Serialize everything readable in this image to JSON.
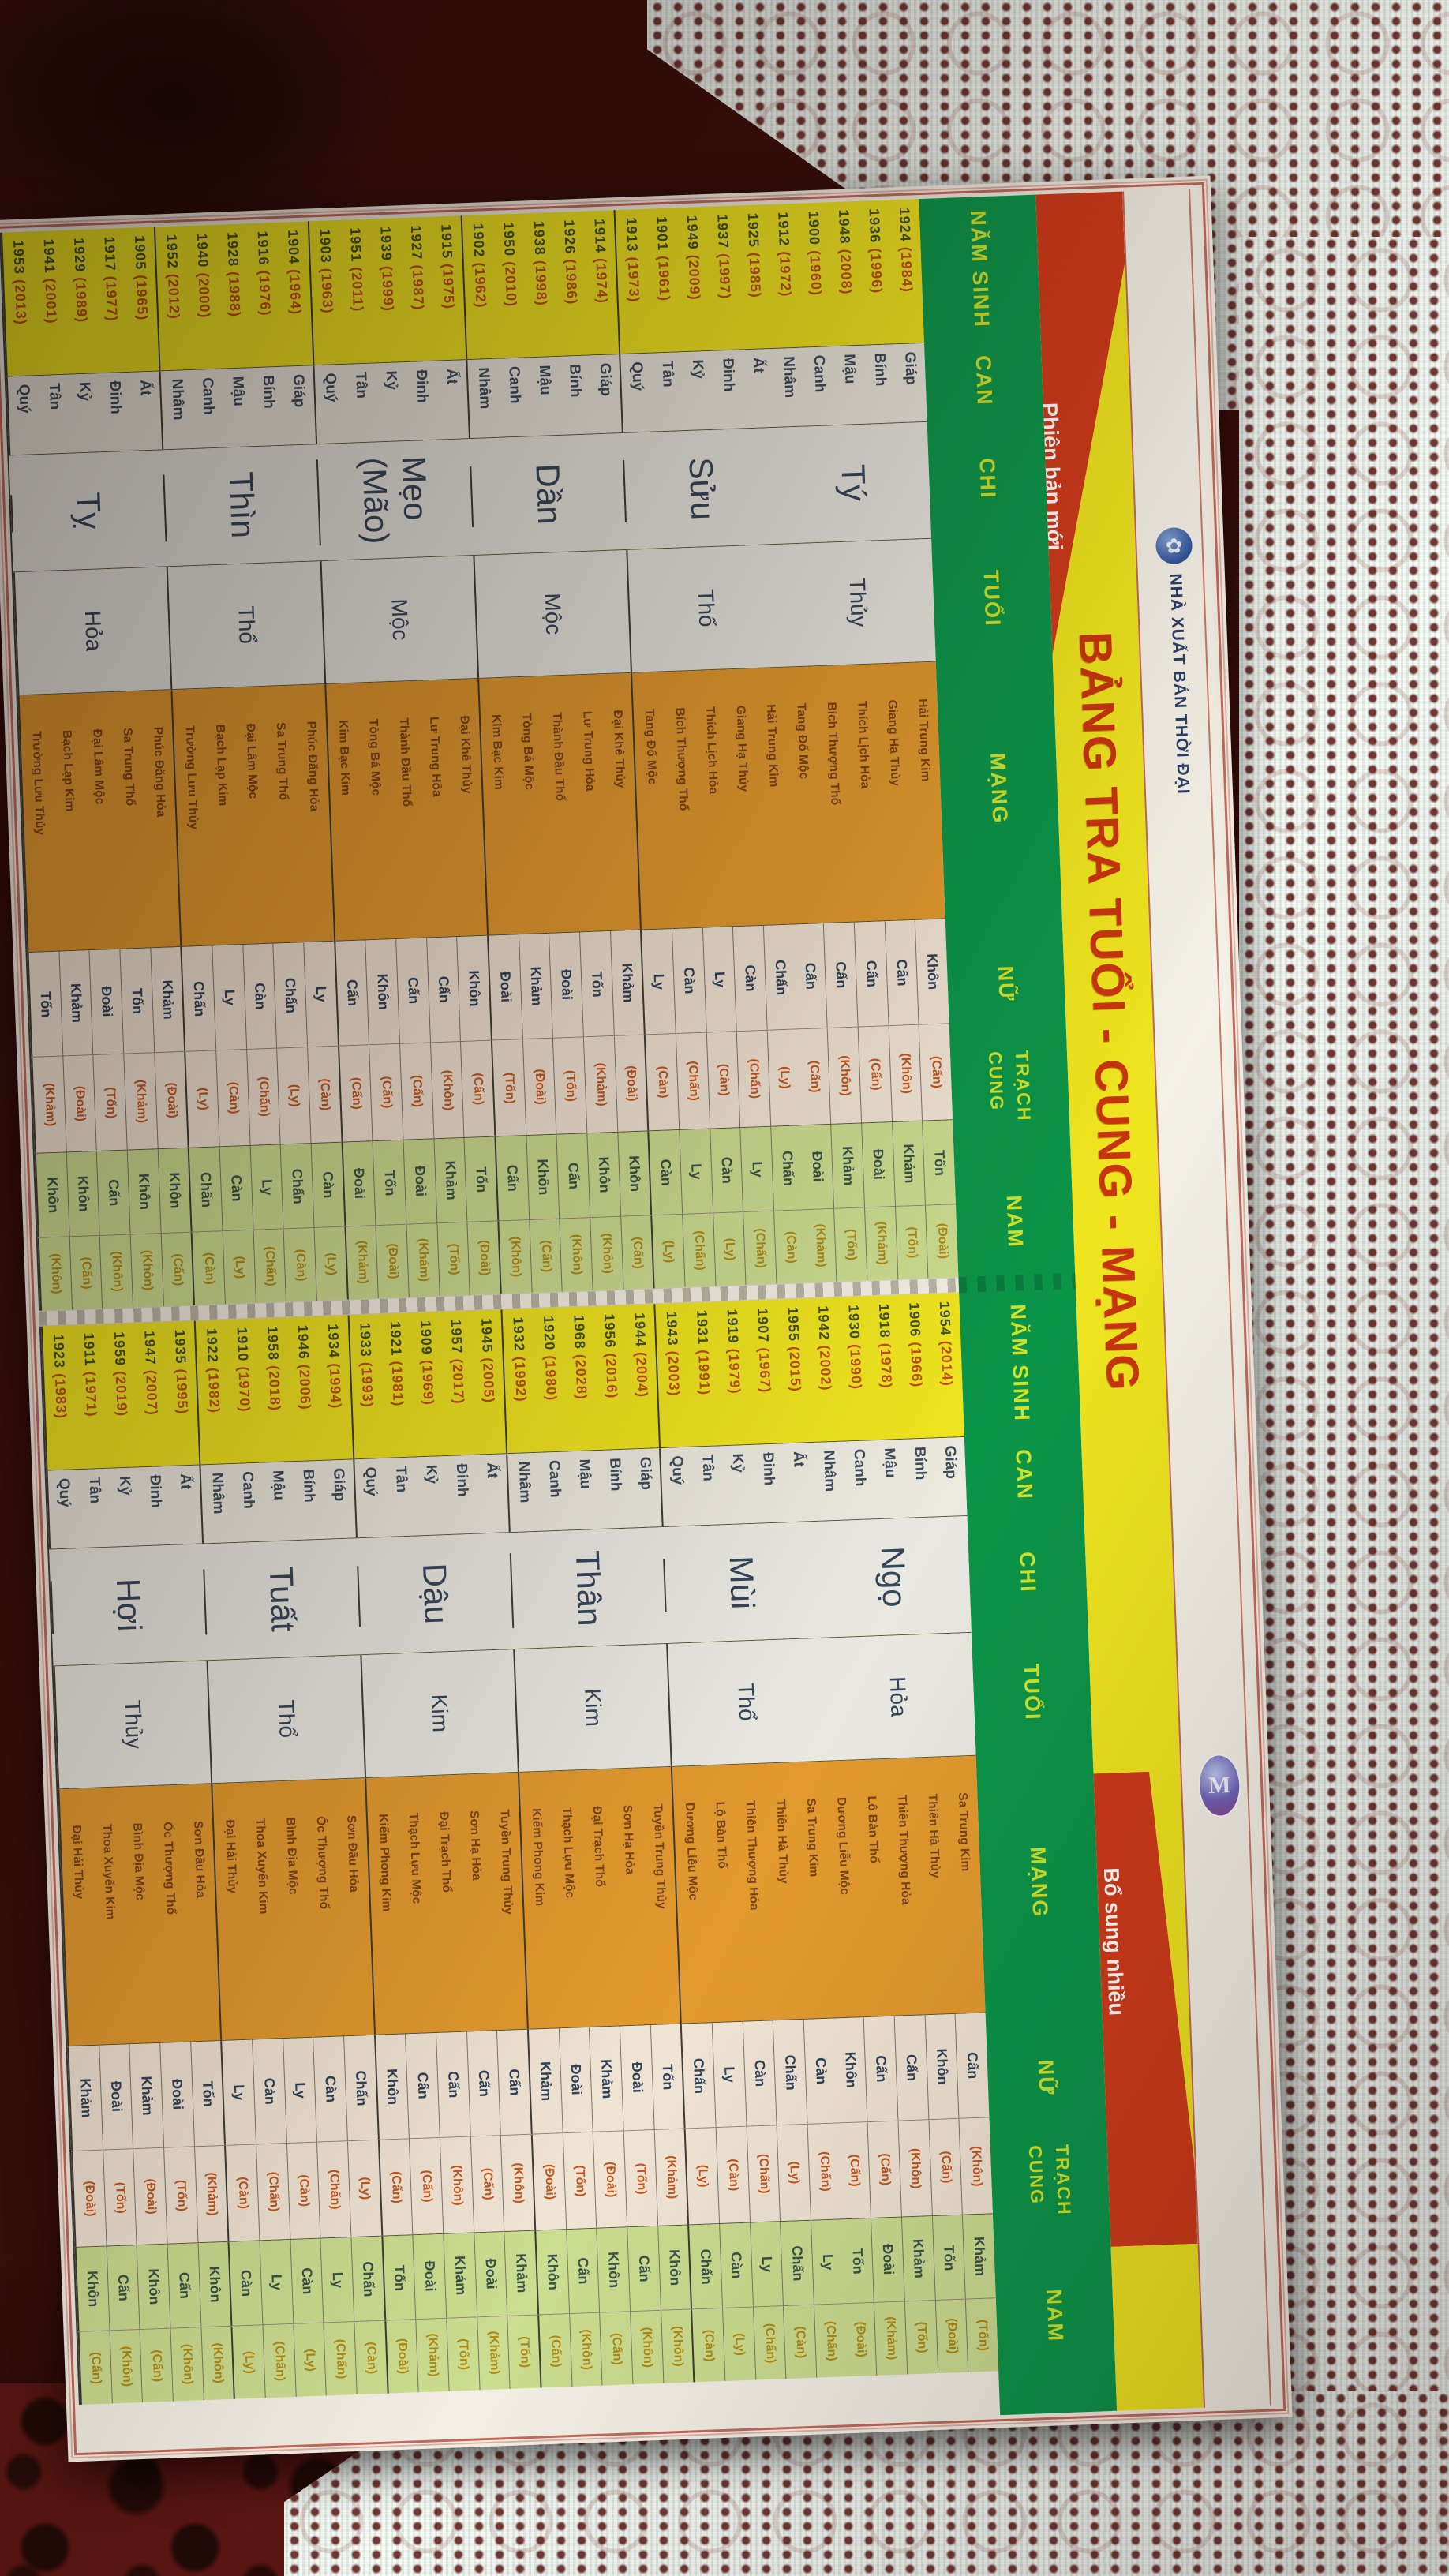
{
  "banner": {
    "ribbon_top": "Phiên bản mới",
    "publisher": "NHÀ XUẤT BẢN THỜI ĐẠI",
    "publisher_logo_glyph": "✿",
    "title": "BẢNG TRA TUỔI - CUNG - MẠNG",
    "ribbon_bottom": "Bổ sung nhiều",
    "m_badge": "M"
  },
  "headers": {
    "nam_sinh": "NĂM SINH",
    "can": "CAN",
    "chi": "CHI",
    "tuoi": "TUỔI",
    "mang": "MẠNG",
    "trach_cung": "TRẠCH CUNG",
    "nu": "NỮ",
    "nam": "NAM"
  },
  "colors": {
    "cloth": "#3a0e0a",
    "yellow": "#efe51f",
    "green": "#0b9549",
    "orange": "#e29a2e",
    "red": "#ce3a1a",
    "redtxt": "#bf4f1a"
  },
  "tables": [
    {
      "id": "front",
      "groups": [
        {
          "chi": "Tý",
          "chi_alt": "",
          "tuoi": "Thủy",
          "rows": [
            {
              "year": "1924",
              "alt": "(1984)",
              "can": "Giáp",
              "mang": "Hải Trung Kim",
              "nu": "Khôn",
              "nu_alt": "(Cấn)",
              "nam": "Tốn",
              "nam_alt": "(Đoài)"
            },
            {
              "year": "1936",
              "alt": "(1996)",
              "can": "Bính",
              "mang": "Giang Hạ Thủy",
              "nu": "Cấn",
              "nu_alt": "(Khôn)",
              "nam": "Khảm",
              "nam_alt": "(Tốn)"
            },
            {
              "year": "1948",
              "alt": "(2008)",
              "can": "Mậu",
              "mang": "Thích Lịch Hỏa",
              "nu": "Cấn",
              "nu_alt": "(Cấn)",
              "nam": "Đoài",
              "nam_alt": "(Khảm)"
            },
            {
              "year": "1900",
              "alt": "(1960)",
              "can": "Canh",
              "mang": "Bích Thượng Thổ",
              "nu": "Cấn",
              "nu_alt": "(Khôn)",
              "nam": "Khảm",
              "nam_alt": "(Tốn)"
            },
            {
              "year": "1912",
              "alt": "(1972)",
              "can": "Nhâm",
              "mang": "Tang Đố Mộc",
              "nu": "Cấn",
              "nu_alt": "(Cấn)",
              "nam": "Đoài",
              "nam_alt": "(Khảm)"
            }
          ]
        },
        {
          "chi": "Sửu",
          "chi_alt": "",
          "tuoi": "Thổ",
          "rows": [
            {
              "year": "1925",
              "alt": "(1985)",
              "can": "Ất",
              "mang": "Hải Trung Kim",
              "nu": "Chấn",
              "nu_alt": "(Ly)",
              "nam": "Chấn",
              "nam_alt": "(Càn)"
            },
            {
              "year": "1937",
              "alt": "(1997)",
              "can": "Đinh",
              "mang": "Giang Hạ Thủy",
              "nu": "Càn",
              "nu_alt": "(Chấn)",
              "nam": "Ly",
              "nam_alt": "(Chấn)"
            },
            {
              "year": "1949",
              "alt": "(2009)",
              "can": "Kỷ",
              "mang": "Thích Lịch Hỏa",
              "nu": "Ly",
              "nu_alt": "(Càn)",
              "nam": "Càn",
              "nam_alt": "(Ly)"
            },
            {
              "year": "1901",
              "alt": "(1961)",
              "can": "Tân",
              "mang": "Bích Thượng Thổ",
              "nu": "Càn",
              "nu_alt": "(Chấn)",
              "nam": "Ly",
              "nam_alt": "(Chấn)"
            },
            {
              "year": "1913",
              "alt": "(1973)",
              "can": "Quý",
              "mang": "Tang Đố Mộc",
              "nu": "Ly",
              "nu_alt": "(Càn)",
              "nam": "Càn",
              "nam_alt": "(Ly)"
            }
          ]
        },
        {
          "chi": "Dần",
          "chi_alt": "",
          "tuoi": "Mộc",
          "rows": [
            {
              "year": "1914",
              "alt": "(1974)",
              "can": "Giáp",
              "mang": "Đại Khê Thủy",
              "nu": "Khảm",
              "nu_alt": "(Đoài)",
              "nam": "Khôn",
              "nam_alt": "(Cấn)"
            },
            {
              "year": "1926",
              "alt": "(1986)",
              "can": "Bính",
              "mang": "Lư Trung Hỏa",
              "nu": "Tốn",
              "nu_alt": "(Khảm)",
              "nam": "Khôn",
              "nam_alt": "(Khôn)"
            },
            {
              "year": "1938",
              "alt": "(1998)",
              "can": "Mậu",
              "mang": "Thành Đầu Thổ",
              "nu": "Đoài",
              "nu_alt": "(Tốn)",
              "nam": "Cấn",
              "nam_alt": "(Khôn)"
            },
            {
              "year": "1950",
              "alt": "(2010)",
              "can": "Canh",
              "mang": "Tòng Bá Mộc",
              "nu": "Khảm",
              "nu_alt": "(Đoài)",
              "nam": "Khôn",
              "nam_alt": "(Cấn)"
            },
            {
              "year": "1902",
              "alt": "(1962)",
              "can": "Nhâm",
              "mang": "Kim Bạc Kim",
              "nu": "Đoài",
              "nu_alt": "(Tốn)",
              "nam": "Cấn",
              "nam_alt": "(Khôn)"
            }
          ]
        },
        {
          "chi": "Mẹo",
          "chi_alt": "(Mão)",
          "tuoi": "Mộc",
          "rows": [
            {
              "year": "1915",
              "alt": "(1975)",
              "can": "Ất",
              "mang": "Đại Khê Thủy",
              "nu": "Khôn",
              "nu_alt": "(Cấn)",
              "nam": "Tốn",
              "nam_alt": "(Đoài)"
            },
            {
              "year": "1927",
              "alt": "(1987)",
              "can": "Đinh",
              "mang": "Lư Trung Hỏa",
              "nu": "Cấn",
              "nu_alt": "(Khôn)",
              "nam": "Khảm",
              "nam_alt": "(Tốn)"
            },
            {
              "year": "1939",
              "alt": "(1999)",
              "can": "Kỷ",
              "mang": "Thành Đầu Thổ",
              "nu": "Cấn",
              "nu_alt": "(Cấn)",
              "nam": "Đoài",
              "nam_alt": "(Khảm)"
            },
            {
              "year": "1951",
              "alt": "(2011)",
              "can": "Tân",
              "mang": "Tòng Bá Mộc",
              "nu": "Khôn",
              "nu_alt": "(Cấn)",
              "nam": "Tốn",
              "nam_alt": "(Đoài)"
            },
            {
              "year": "1903",
              "alt": "(1963)",
              "can": "Quý",
              "mang": "Kim Bạc Kim",
              "nu": "Cấn",
              "nu_alt": "(Cấn)",
              "nam": "Đoài",
              "nam_alt": "(Khảm)"
            }
          ]
        },
        {
          "chi": "Thìn",
          "chi_alt": "",
          "tuoi": "Thổ",
          "rows": [
            {
              "year": "1904",
              "alt": "(1964)",
              "can": "Giáp",
              "mang": "Phúc Đăng Hỏa",
              "nu": "Ly",
              "nu_alt": "(Càn)",
              "nam": "Càn",
              "nam_alt": "(Ly)"
            },
            {
              "year": "1916",
              "alt": "(1976)",
              "can": "Bính",
              "mang": "Sa Trung Thổ",
              "nu": "Chấn",
              "nu_alt": "(Ly)",
              "nam": "Chấn",
              "nam_alt": "(Càn)"
            },
            {
              "year": "1928",
              "alt": "(1988)",
              "can": "Mậu",
              "mang": "Đại Lâm Mộc",
              "nu": "Càn",
              "nu_alt": "(Chấn)",
              "nam": "Ly",
              "nam_alt": "(Chấn)"
            },
            {
              "year": "1940",
              "alt": "(2000)",
              "can": "Canh",
              "mang": "Bạch Lạp Kim",
              "nu": "Ly",
              "nu_alt": "(Càn)",
              "nam": "Càn",
              "nam_alt": "(Ly)"
            },
            {
              "year": "1952",
              "alt": "(2012)",
              "can": "Nhâm",
              "mang": "Trường Lưu Thủy",
              "nu": "Chấn",
              "nu_alt": "(Ly)",
              "nam": "Chấn",
              "nam_alt": "(Càn)"
            }
          ]
        },
        {
          "chi": "Tỵ",
          "chi_alt": "",
          "tuoi": "Hỏa",
          "rows": [
            {
              "year": "1905",
              "alt": "(1965)",
              "can": "Ất",
              "mang": "Phúc Đăng Hỏa",
              "nu": "Khảm",
              "nu_alt": "(Đoài)",
              "nam": "Khôn",
              "nam_alt": "(Cấn)"
            },
            {
              "year": "1917",
              "alt": "(1977)",
              "can": "Đinh",
              "mang": "Sa Trung Thổ",
              "nu": "Tốn",
              "nu_alt": "(Khảm)",
              "nam": "Khôn",
              "nam_alt": "(Khôn)"
            },
            {
              "year": "1929",
              "alt": "(1989)",
              "can": "Kỷ",
              "mang": "Đại Lâm Mộc",
              "nu": "Đoài",
              "nu_alt": "(Tốn)",
              "nam": "Cấn",
              "nam_alt": "(Khôn)"
            },
            {
              "year": "1941",
              "alt": "(2001)",
              "can": "Tân",
              "mang": "Bạch Lạp Kim",
              "nu": "Khảm",
              "nu_alt": "(Đoài)",
              "nam": "Khôn",
              "nam_alt": "(Cấn)"
            },
            {
              "year": "1953",
              "alt": "(2013)",
              "can": "Quý",
              "mang": "Trường Lưu Thủy",
              "nu": "Tốn",
              "nu_alt": "(Khảm)",
              "nam": "Khôn",
              "nam_alt": "(Khôn)"
            }
          ]
        }
      ]
    },
    {
      "id": "back",
      "groups": [
        {
          "chi": "Ngọ",
          "chi_alt": "",
          "tuoi": "Hỏa",
          "rows": [
            {
              "year": "1954",
              "alt": "(2014)",
              "can": "Giáp",
              "mang": "Sa Trung Kim",
              "nu": "Cấn",
              "nu_alt": "(Khôn)",
              "nam": "Khảm",
              "nam_alt": "(Tốn)"
            },
            {
              "year": "1906",
              "alt": "(1966)",
              "can": "Bính",
              "mang": "Thiên Hà Thủy",
              "nu": "Khôn",
              "nu_alt": "(Cấn)",
              "nam": "Tốn",
              "nam_alt": "(Đoài)"
            },
            {
              "year": "1918",
              "alt": "(1978)",
              "can": "Mậu",
              "mang": "Thiên Thượng Hỏa",
              "nu": "Cấn",
              "nu_alt": "(Khôn)",
              "nam": "Khảm",
              "nam_alt": "(Tốn)"
            },
            {
              "year": "1930",
              "alt": "(1990)",
              "can": "Canh",
              "mang": "Lộ Bàn Thổ",
              "nu": "Cấn",
              "nu_alt": "(Cấn)",
              "nam": "Đoài",
              "nam_alt": "(Khảm)"
            },
            {
              "year": "1942",
              "alt": "(2002)",
              "can": "Nhâm",
              "mang": "Dương Liễu Mộc",
              "nu": "Khôn",
              "nu_alt": "(Cấn)",
              "nam": "Tốn",
              "nam_alt": "(Đoài)"
            }
          ]
        },
        {
          "chi": "Mùi",
          "chi_alt": "",
          "tuoi": "Thổ",
          "rows": [
            {
              "year": "1955",
              "alt": "(2015)",
              "can": "Ất",
              "mang": "Sa Trung Kim",
              "nu": "Càn",
              "nu_alt": "(Chấn)",
              "nam": "Ly",
              "nam_alt": "(Chấn)"
            },
            {
              "year": "1907",
              "alt": "(1967)",
              "can": "Đinh",
              "mang": "Thiên Hà Thủy",
              "nu": "Chấn",
              "nu_alt": "(Ly)",
              "nam": "Chấn",
              "nam_alt": "(Càn)"
            },
            {
              "year": "1919",
              "alt": "(1979)",
              "can": "Kỷ",
              "mang": "Thiên Thượng Hỏa",
              "nu": "Càn",
              "nu_alt": "(Chấn)",
              "nam": "Ly",
              "nam_alt": "(Chấn)"
            },
            {
              "year": "1931",
              "alt": "(1991)",
              "can": "Tân",
              "mang": "Lộ Bàn Thổ",
              "nu": "Ly",
              "nu_alt": "(Càn)",
              "nam": "Càn",
              "nam_alt": "(Ly)"
            },
            {
              "year": "1943",
              "alt": "(2003)",
              "can": "Quý",
              "mang": "Dương Liễu Mộc",
              "nu": "Chấn",
              "nu_alt": "(Ly)",
              "nam": "Chấn",
              "nam_alt": "(Càn)"
            }
          ]
        },
        {
          "chi": "Thân",
          "chi_alt": "",
          "tuoi": "Kim",
          "rows": [
            {
              "year": "1944",
              "alt": "(2004)",
              "can": "Giáp",
              "mang": "Tuyền Trung Thủy",
              "nu": "Tốn",
              "nu_alt": "(Khảm)",
              "nam": "Khôn",
              "nam_alt": "(Khôn)"
            },
            {
              "year": "1956",
              "alt": "(2016)",
              "can": "Bính",
              "mang": "Sơn Hạ Hỏa",
              "nu": "Đoài",
              "nu_alt": "(Tốn)",
              "nam": "Cấn",
              "nam_alt": "(Khôn)"
            },
            {
              "year": "1968",
              "alt": "(2028)",
              "can": "Mậu",
              "mang": "Đại Trạch Thổ",
              "nu": "Khảm",
              "nu_alt": "(Đoài)",
              "nam": "Khôn",
              "nam_alt": "(Cấn)"
            },
            {
              "year": "1920",
              "alt": "(1980)",
              "can": "Canh",
              "mang": "Thạch Lựu Mộc",
              "nu": "Đoài",
              "nu_alt": "(Tốn)",
              "nam": "Cấn",
              "nam_alt": "(Khôn)"
            },
            {
              "year": "1932",
              "alt": "(1992)",
              "can": "Nhâm",
              "mang": "Kiếm Phong Kim",
              "nu": "Khảm",
              "nu_alt": "(Đoài)",
              "nam": "Khôn",
              "nam_alt": "(Cấn)"
            }
          ]
        },
        {
          "chi": "Dậu",
          "chi_alt": "",
          "tuoi": "Kim",
          "rows": [
            {
              "year": "1945",
              "alt": "(2005)",
              "can": "Ất",
              "mang": "Tuyền Trung Thủy",
              "nu": "Cấn",
              "nu_alt": "(Khôn)",
              "nam": "Khảm",
              "nam_alt": "(Tốn)"
            },
            {
              "year": "1957",
              "alt": "(2017)",
              "can": "Đinh",
              "mang": "Sơn Hạ Hỏa",
              "nu": "Cấn",
              "nu_alt": "(Cấn)",
              "nam": "Đoài",
              "nam_alt": "(Khảm)"
            },
            {
              "year": "1909",
              "alt": "(1969)",
              "can": "Kỷ",
              "mang": "Đại Trạch Thổ",
              "nu": "Cấn",
              "nu_alt": "(Khôn)",
              "nam": "Khảm",
              "nam_alt": "(Tốn)"
            },
            {
              "year": "1921",
              "alt": "(1981)",
              "can": "Tân",
              "mang": "Thạch Lựu Mộc",
              "nu": "Cấn",
              "nu_alt": "(Cấn)",
              "nam": "Đoài",
              "nam_alt": "(Khảm)"
            },
            {
              "year": "1933",
              "alt": "(1993)",
              "can": "Quý",
              "mang": "Kiếm Phong Kim",
              "nu": "Khôn",
              "nu_alt": "(Cấn)",
              "nam": "Tốn",
              "nam_alt": "(Đoài)"
            }
          ]
        },
        {
          "chi": "Tuất",
          "chi_alt": "",
          "tuoi": "Thổ",
          "rows": [
            {
              "year": "1934",
              "alt": "(1994)",
              "can": "Giáp",
              "mang": "Sơn Đầu Hỏa",
              "nu": "Chấn",
              "nu_alt": "(Ly)",
              "nam": "Chấn",
              "nam_alt": "(Càn)"
            },
            {
              "year": "1946",
              "alt": "(2006)",
              "can": "Bính",
              "mang": "Ốc Thượng Thổ",
              "nu": "Càn",
              "nu_alt": "(Chấn)",
              "nam": "Ly",
              "nam_alt": "(Chấn)"
            },
            {
              "year": "1958",
              "alt": "(2018)",
              "can": "Mậu",
              "mang": "Bình Địa Mộc",
              "nu": "Ly",
              "nu_alt": "(Càn)",
              "nam": "Càn",
              "nam_alt": "(Ly)"
            },
            {
              "year": "1910",
              "alt": "(1970)",
              "can": "Canh",
              "mang": "Thoa Xuyến Kim",
              "nu": "Càn",
              "nu_alt": "(Chấn)",
              "nam": "Ly",
              "nam_alt": "(Chấn)"
            },
            {
              "year": "1922",
              "alt": "(1982)",
              "can": "Nhâm",
              "mang": "Đại Hải Thủy",
              "nu": "Ly",
              "nu_alt": "(Càn)",
              "nam": "Càn",
              "nam_alt": "(Ly)"
            }
          ]
        },
        {
          "chi": "Hợi",
          "chi_alt": "",
          "tuoi": "Thủy",
          "rows": [
            {
              "year": "1935",
              "alt": "(1995)",
              "can": "Ất",
              "mang": "Sơn Đầu Hỏa",
              "nu": "Tốn",
              "nu_alt": "(Khảm)",
              "nam": "Khôn",
              "nam_alt": "(Khôn)"
            },
            {
              "year": "1947",
              "alt": "(2007)",
              "can": "Đinh",
              "mang": "Ốc Thượng Thổ",
              "nu": "Đoài",
              "nu_alt": "(Tốn)",
              "nam": "Cấn",
              "nam_alt": "(Khôn)"
            },
            {
              "year": "1959",
              "alt": "(2019)",
              "can": "Kỷ",
              "mang": "Bình Địa Mộc",
              "nu": "Khảm",
              "nu_alt": "(Đoài)",
              "nam": "Khôn",
              "nam_alt": "(Cấn)"
            },
            {
              "year": "1911",
              "alt": "(1971)",
              "can": "Tân",
              "mang": "Thoa Xuyến Kim",
              "nu": "Đoài",
              "nu_alt": "(Tốn)",
              "nam": "Cấn",
              "nam_alt": "(Khôn)"
            },
            {
              "year": "1923",
              "alt": "(1983)",
              "can": "Quý",
              "mang": "Đại Hải Thủy",
              "nu": "Khảm",
              "nu_alt": "(Đoài)",
              "nam": "Khôn",
              "nam_alt": "(Cấn)"
            }
          ]
        }
      ]
    }
  ]
}
